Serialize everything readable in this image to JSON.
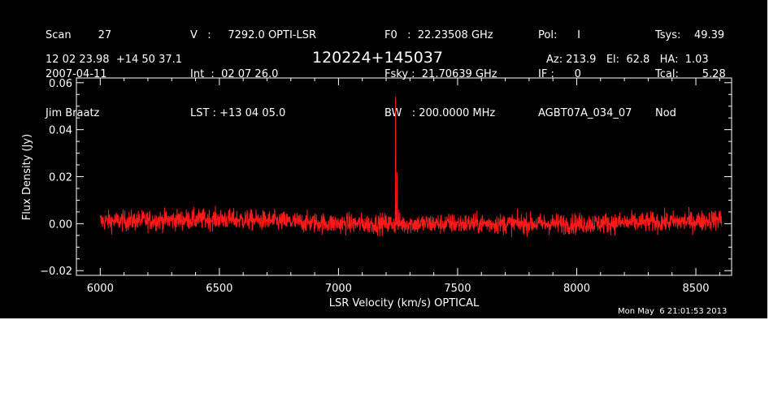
{
  "header": {
    "col1": [
      "Scan        27",
      "2007-04-11",
      "Jim Braatz"
    ],
    "col2": [
      "V   :     7292.0 OPTI-LSR",
      "Int  :  02 07 26.0",
      "LST : +13 04 05.0"
    ],
    "col3": [
      "F0   :  22.23508 GHz",
      "Fsky :  21.70639 GHz",
      "BW   : 200.0000 MHz"
    ],
    "col4": [
      "Pol:      I",
      "IF :      0",
      "AGBT07A_034_07"
    ],
    "col5": [
      "Tsys:    49.39",
      "Tcal:       5.28",
      "Nod"
    ],
    "coords": "12 02 23.98  +14 50 37.1",
    "source": "120224+145037",
    "azel": "Az: 213.9   El:  62.8   HA:  1.03"
  },
  "timestamp": "Mon May  6 21:01:53 2013",
  "colors": {
    "background": "#000000",
    "axes": "#ffffff",
    "series": "#ff1a1a"
  },
  "chart_data": {
    "type": "line",
    "title": "120224+145037",
    "xlabel": "LSR Velocity (km/s) OPTICAL",
    "ylabel": "Flux Density (Jy)",
    "xlim": [
      5900,
      8650
    ],
    "ylim": [
      -0.022,
      0.062
    ],
    "xticks": [
      6000,
      6500,
      7000,
      7500,
      8000,
      8500
    ],
    "yticks": [
      -0.02,
      0.0,
      0.02,
      0.04,
      0.06
    ],
    "ytick_labels": [
      "−0.02",
      "0.00",
      "0.02",
      "0.04",
      "0.06"
    ],
    "grid": false,
    "series": [
      {
        "x_range": [
          6000,
          8610
        ],
        "noise_rms": 0.0022,
        "baseline": 0.0,
        "peaks": [
          {
            "x": 7240,
            "y": 0.054
          },
          {
            "x": 7246,
            "y": 0.022
          },
          {
            "x": 7252,
            "y": 0.006
          }
        ],
        "anchors": [
          {
            "x": 6000,
            "y": 0.001
          },
          {
            "x": 6500,
            "y": 0.002
          },
          {
            "x": 7000,
            "y": 0.0
          },
          {
            "x": 7500,
            "y": 0.0
          },
          {
            "x": 8000,
            "y": 0.0
          },
          {
            "x": 8500,
            "y": 0.001
          },
          {
            "x": 8610,
            "y": 0.002
          }
        ]
      }
    ]
  }
}
